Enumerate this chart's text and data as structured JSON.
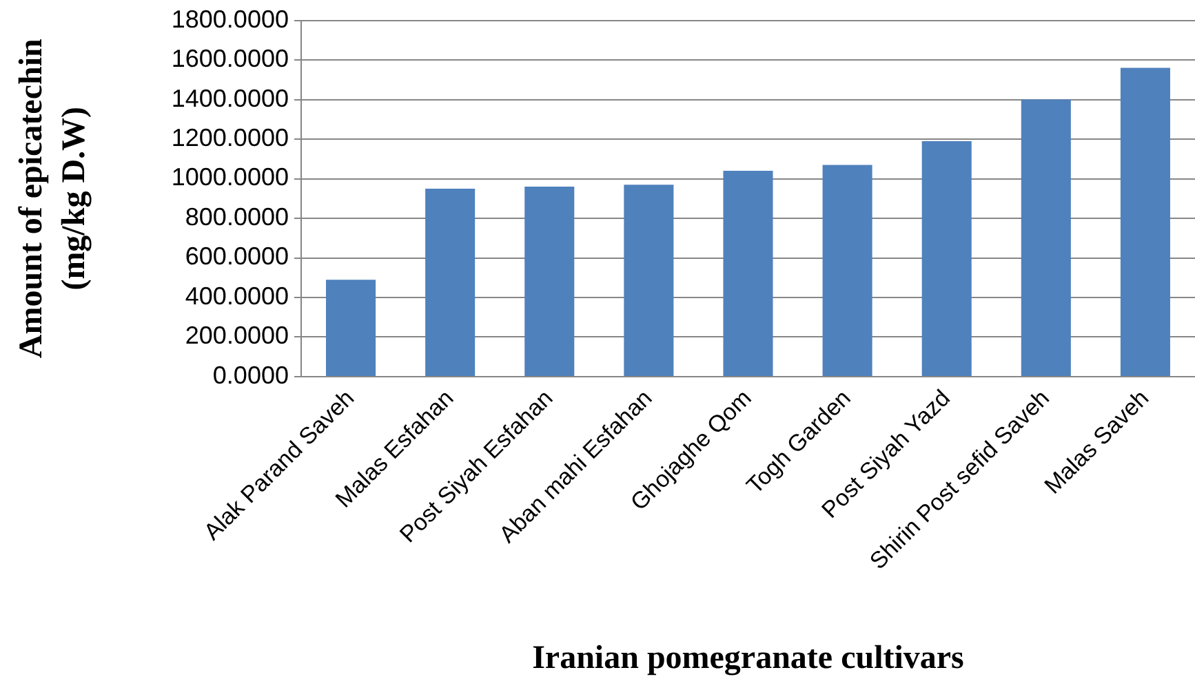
{
  "chart_data": {
    "type": "bar",
    "xlabel": "Iranian pomegranate cultivars",
    "ylabel": "Amount of epicatechin\n(mg/kg D.W)",
    "categories": [
      "Alak Parand Saveh",
      "Malas Esfahan",
      "Post Siyah Esfahan",
      "Aban mahi Esfahan",
      "Ghojaghe Qom",
      "Togh Garden",
      "Post Siyah Yazd",
      "Shirin Post sefid Saveh",
      "Malas Saveh"
    ],
    "values": [
      490,
      950,
      960,
      970,
      1040,
      1070,
      1190,
      1400,
      1560
    ],
    "color": "#4f81bd",
    "ylim": [
      0,
      1800
    ],
    "yticks": [
      {
        "value": 0,
        "label": "0.0000"
      },
      {
        "value": 200,
        "label": "200.0000"
      },
      {
        "value": 400,
        "label": "400.0000"
      },
      {
        "value": 600,
        "label": "600.0000"
      },
      {
        "value": 800,
        "label": "800.0000"
      },
      {
        "value": 1000,
        "label": "1000.0000"
      },
      {
        "value": 1200,
        "label": "1200.0000"
      },
      {
        "value": 1400,
        "label": "1400.0000"
      },
      {
        "value": 1600,
        "label": "1600.0000"
      },
      {
        "value": 1800,
        "label": "1800.0000"
      }
    ],
    "grid": "y"
  }
}
